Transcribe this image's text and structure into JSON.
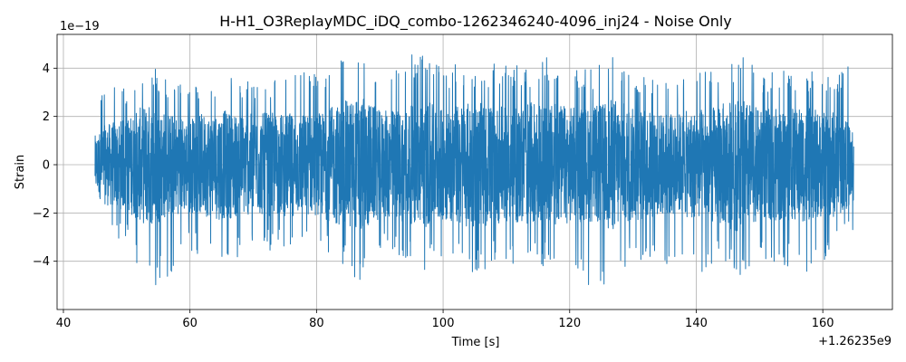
{
  "chart_data": {
    "type": "line",
    "title": "H-H1_O3ReplayMDC_iDQ_combo-1262346240-4096_inj24 - Noise Only",
    "xlabel": "Time [s]",
    "ylabel": "Strain",
    "x_offset_text": "+1.26235e9",
    "y_scale_text": "1e−19",
    "xlim": [
      39,
      171
    ],
    "ylim": [
      -6.0,
      5.4
    ],
    "x_ticks": [
      40,
      60,
      80,
      100,
      120,
      140,
      160
    ],
    "x_tick_labels": [
      "40",
      "60",
      "80",
      "100",
      "120",
      "140",
      "160"
    ],
    "y_ticks": [
      -4,
      -2,
      0,
      2,
      4
    ],
    "y_tick_labels": [
      "−4",
      "−2",
      "0",
      "2",
      "4"
    ],
    "grid": true,
    "series": [
      {
        "color": "#1f77b4",
        "x_range": [
          45.0,
          164.9
        ],
        "envelope_x": [
          45,
          46.7,
          50,
          53.2,
          57.8,
          60,
          64.6,
          70,
          80,
          86.9,
          90,
          93.6,
          97.3,
          100,
          104.7,
          110,
          112.9,
          116.6,
          120,
          123.9,
          127.5,
          130,
          135.9,
          140,
          143.3,
          146.9,
          150,
          157.4,
          160,
          164.7
        ],
        "envelope_max": [
          2.1,
          3.7,
          3.2,
          4.3,
          3.4,
          3.3,
          3.8,
          3.5,
          4.0,
          4.7,
          4.0,
          4.5,
          5.0,
          4.2,
          4.3,
          4.1,
          4.2,
          4.5,
          4.0,
          4.0,
          4.7,
          3.9,
          3.5,
          3.8,
          4.1,
          4.7,
          3.8,
          4.0,
          3.6,
          4.3
        ],
        "envelope_min": [
          -2.0,
          -2.8,
          -3.2,
          -5.4,
          -4.5,
          -3.6,
          -4.1,
          -3.6,
          -3.5,
          -4.9,
          -3.7,
          -3.9,
          -4.4,
          -3.8,
          -4.6,
          -3.9,
          -4.5,
          -4.1,
          -4.5,
          -5.4,
          -4.6,
          -3.9,
          -4.4,
          -4.6,
          -4.1,
          -4.7,
          -4.0,
          -4.5,
          -4.3,
          -2.7
        ]
      }
    ]
  }
}
